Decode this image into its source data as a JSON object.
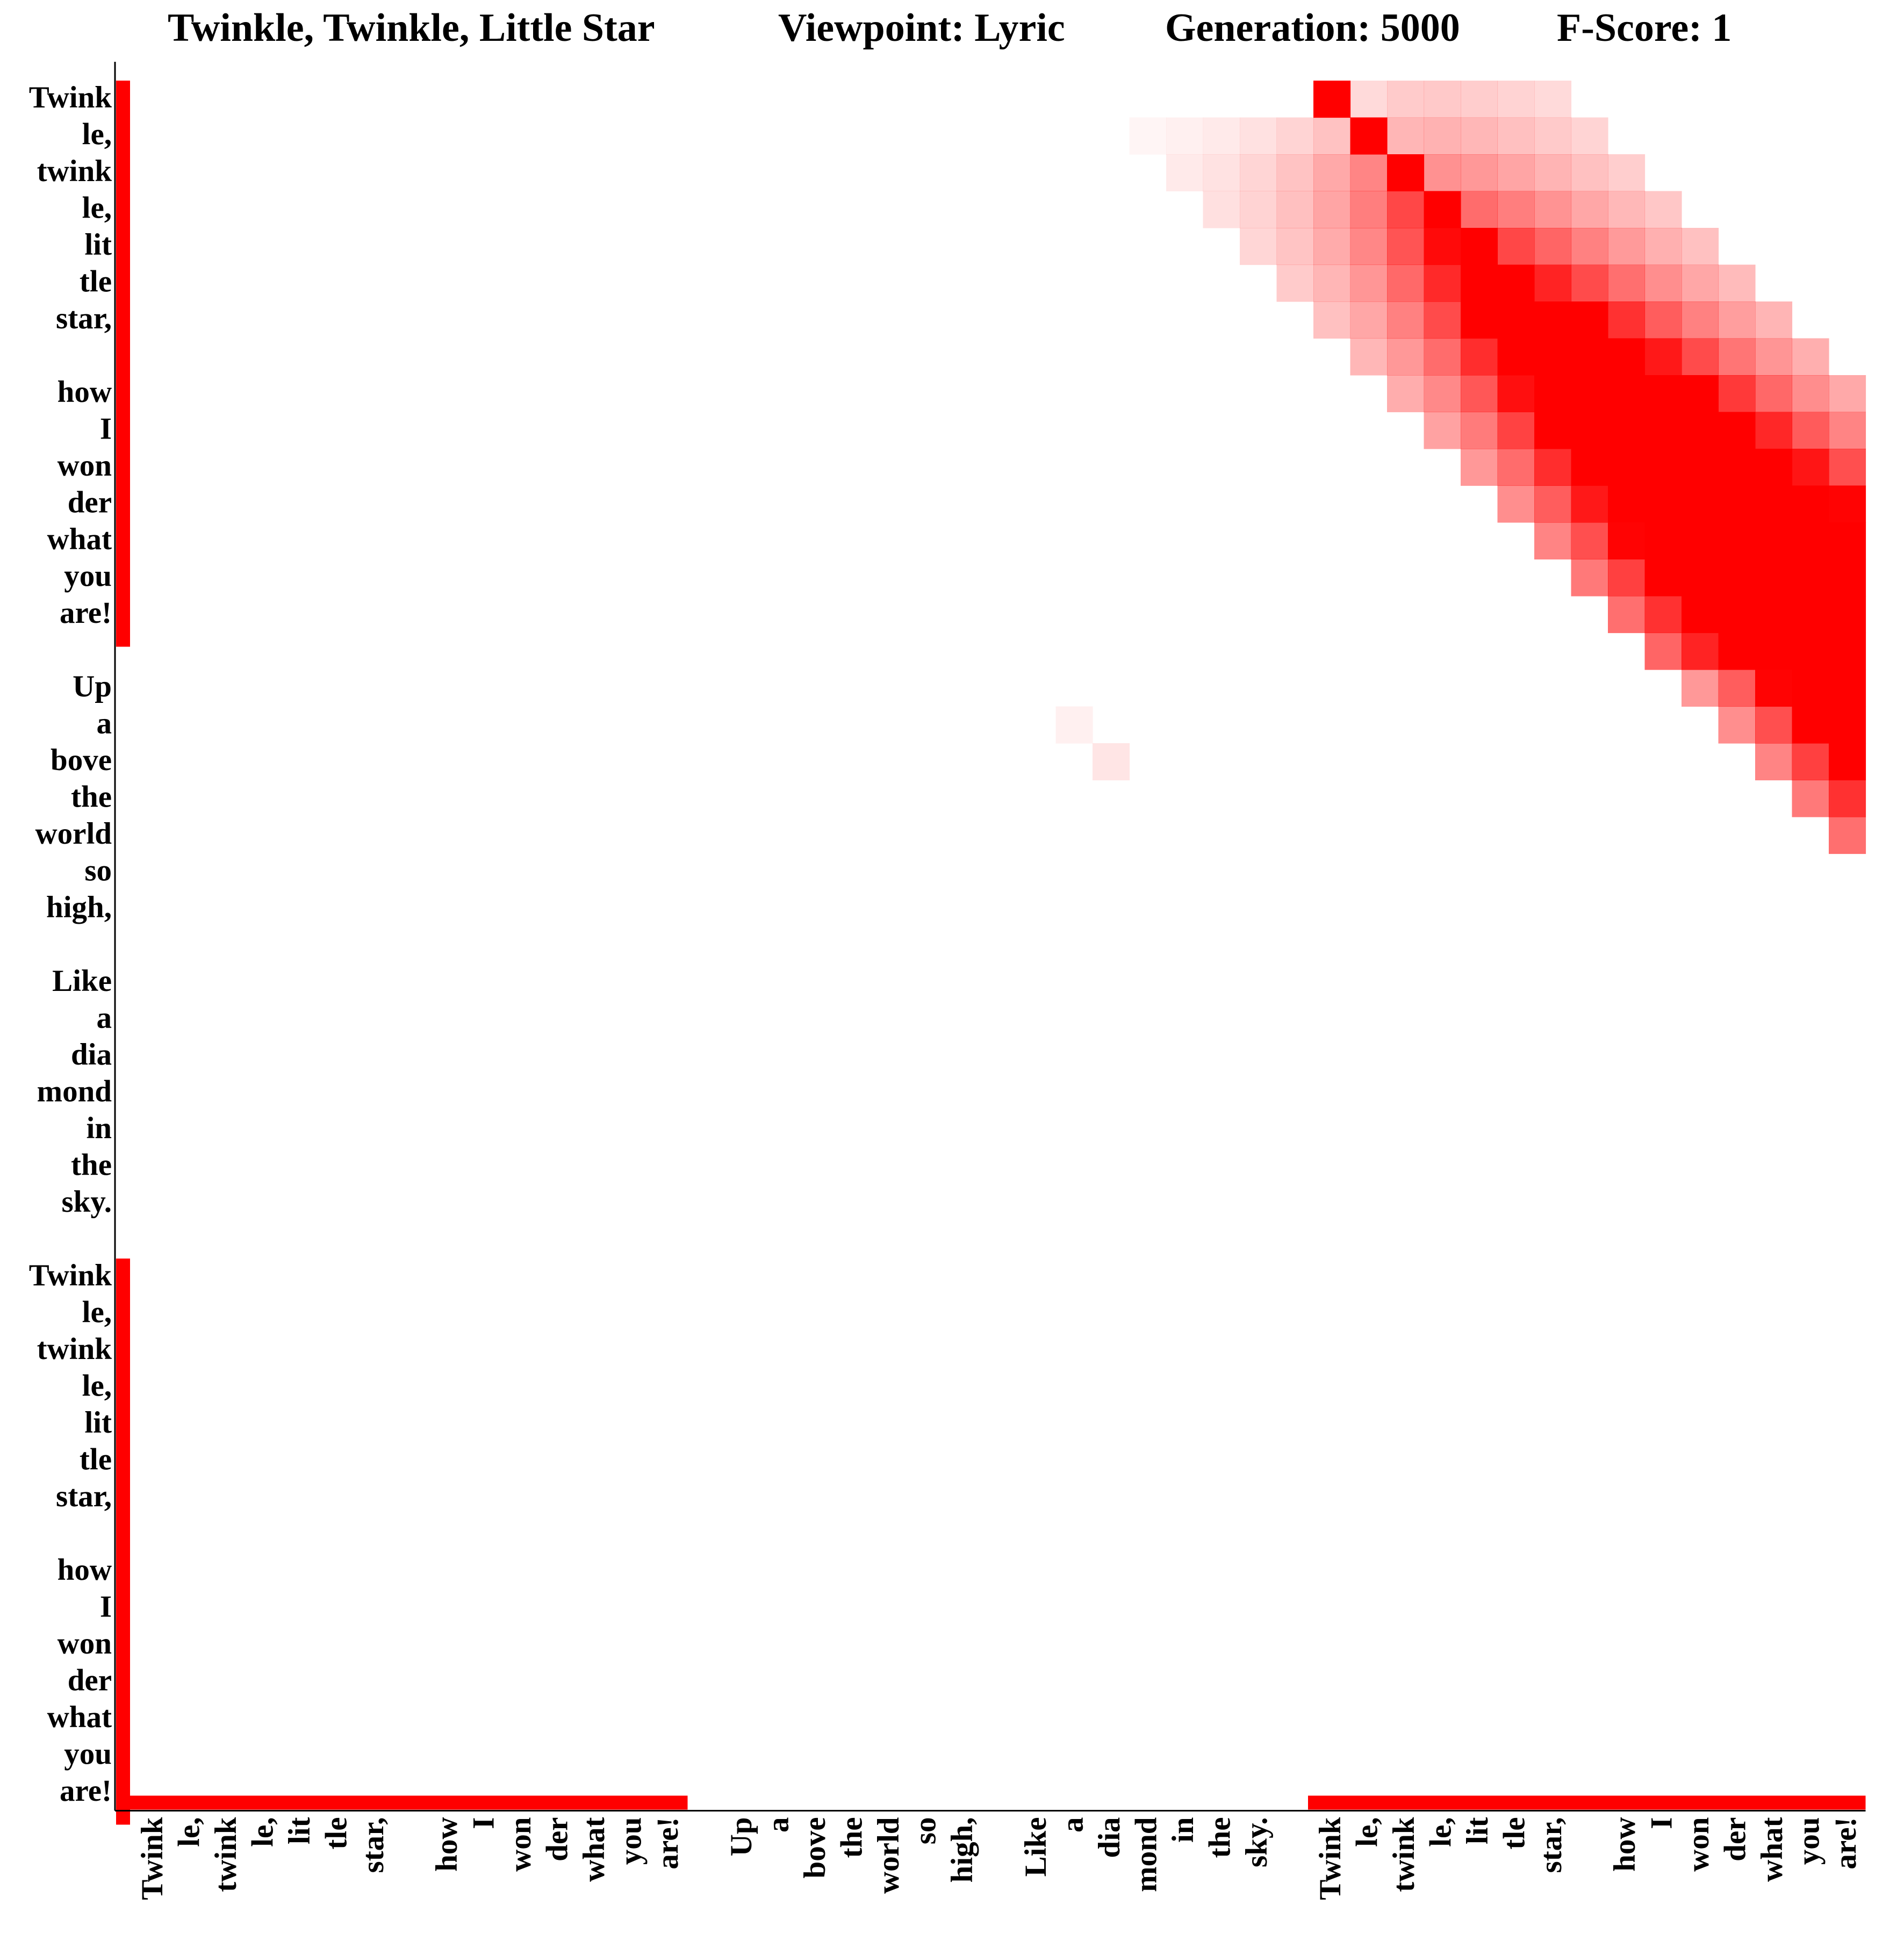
{
  "title_parts": [
    "Twinkle, Twinkle, Little Star",
    "Viewpoint: Lyric",
    "Generation: 5000",
    "F-Score: 1"
  ],
  "chart_data": {
    "type": "heatmap",
    "title": "Twinkle, Twinkle, Little Star      Viewpoint: Lyric      Generation: 5000      F-Score: 1",
    "xlabel": "",
    "ylabel": "",
    "tokens": [
      "Twink",
      "le,",
      "twink",
      "le,",
      "lit",
      "tle",
      "star,",
      "",
      "how",
      "I",
      "won",
      "der",
      "what",
      "you",
      "are!",
      "",
      "Up",
      "a",
      "bove",
      "the",
      "world",
      "so",
      "high,",
      "",
      "Like",
      "a",
      "dia",
      "mond",
      "in",
      "the",
      "sky.",
      "",
      "Twink",
      "le,",
      "twink",
      "le,",
      "lit",
      "tle",
      "star,",
      "",
      "how",
      "I",
      "won",
      "der",
      "what",
      "you",
      "are!"
    ],
    "y_axis": "tokens listed top to bottom",
    "x_axis": "tokens listed left to right",
    "color": "#ff0000",
    "full_intensity_bars": [
      {
        "axis": "y",
        "from": 0,
        "to": 15,
        "value": 1.0
      },
      {
        "axis": "y",
        "from": 32,
        "to": 47,
        "value": 1.0
      },
      {
        "axis": "x",
        "from": 0,
        "to": 15,
        "value": 1.0
      },
      {
        "axis": "x",
        "from": 32,
        "to": 47,
        "value": 1.0
      }
    ],
    "diagonal_match": {
      "row_start": 0,
      "col_start": 32,
      "length": 16,
      "peak": 1.0,
      "halo_growth": 0.24,
      "halo_decay": 0.7
    },
    "cells": [
      {
        "row": 17,
        "col": 25,
        "value": 0.06
      },
      {
        "row": 18,
        "col": 26,
        "value": 0.1
      }
    ]
  }
}
